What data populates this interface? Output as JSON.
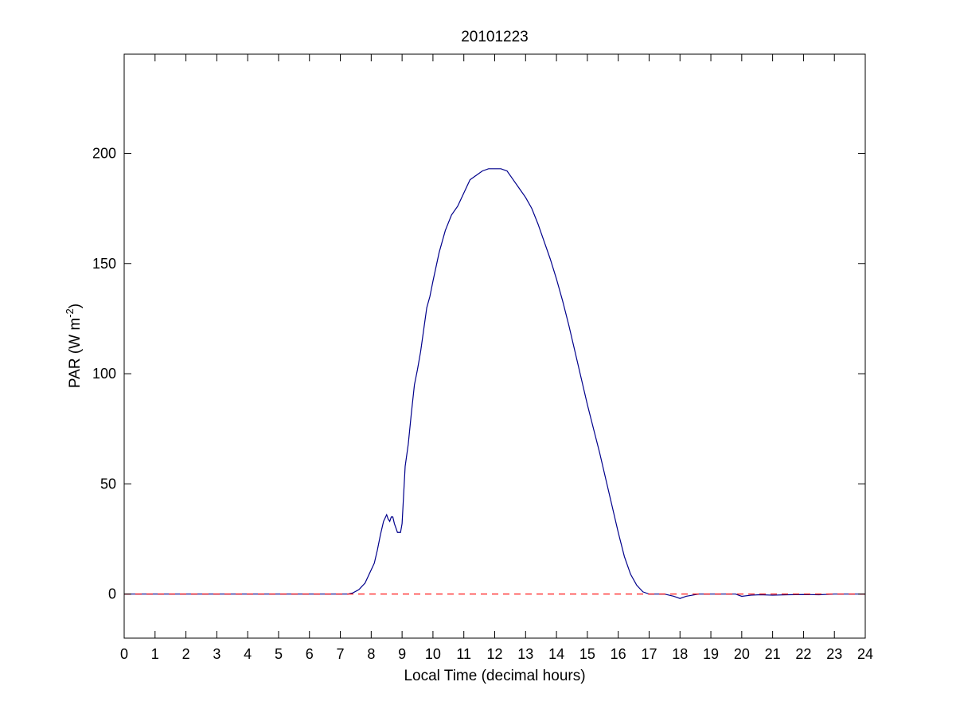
{
  "chart_data": {
    "type": "line",
    "title": "20101223",
    "xlabel": "Local Time (decimal hours)",
    "ylabel": {
      "main": "PAR (W m",
      "superscript": "-2",
      "close": ")"
    },
    "xlim": [
      0,
      24
    ],
    "ylim": [
      -20,
      245
    ],
    "x_ticks": [
      0,
      1,
      2,
      3,
      4,
      5,
      6,
      7,
      8,
      9,
      10,
      11,
      12,
      13,
      14,
      15,
      16,
      17,
      18,
      19,
      20,
      21,
      22,
      23,
      24
    ],
    "y_ticks": [
      0,
      50,
      100,
      150,
      200
    ],
    "grid": false,
    "series": [
      {
        "color": "#00008b",
        "style": "solid",
        "x": [
          0,
          7.0,
          7.25,
          7.4,
          7.6,
          7.8,
          8.0,
          8.1,
          8.2,
          8.3,
          8.4,
          8.5,
          8.55,
          8.6,
          8.65,
          8.7,
          8.75,
          8.8,
          8.85,
          8.9,
          8.95,
          9.0,
          9.05,
          9.1,
          9.2,
          9.3,
          9.4,
          9.5,
          9.6,
          9.7,
          9.8,
          9.9,
          10.0,
          10.2,
          10.4,
          10.6,
          10.8,
          11.0,
          11.2,
          11.4,
          11.6,
          11.8,
          12.0,
          12.2,
          12.4,
          12.6,
          12.8,
          13.0,
          13.2,
          13.4,
          13.6,
          13.8,
          14.0,
          14.2,
          14.4,
          14.6,
          14.8,
          15.0,
          15.2,
          15.4,
          15.6,
          15.8,
          16.0,
          16.2,
          16.4,
          16.6,
          16.8,
          17.0,
          17.2,
          17.5,
          17.8,
          18.0,
          18.2,
          18.4,
          18.6,
          19.0,
          19.5,
          19.8,
          20.0,
          20.3,
          20.6,
          21.0,
          21.5,
          22.0,
          22.5,
          23.0,
          23.1,
          24.0
        ],
        "values": [
          0,
          0,
          0,
          0.5,
          2,
          5,
          11,
          14,
          20,
          27,
          33,
          36,
          34,
          33,
          35,
          35,
          32,
          30,
          28,
          28,
          28,
          32,
          45,
          58,
          68,
          82,
          95,
          102,
          110,
          120,
          130,
          135,
          142,
          155,
          165,
          172,
          176,
          182,
          188,
          190,
          192,
          193,
          193,
          193,
          192,
          188,
          184,
          180,
          175,
          168,
          160,
          152,
          143,
          133,
          122,
          110,
          98,
          86,
          75,
          64,
          52,
          40,
          28,
          17,
          9,
          4,
          1,
          0,
          0,
          0,
          -1,
          -2,
          -1,
          -0.5,
          0,
          0,
          0,
          0,
          -1,
          -0.5,
          -0.3,
          -0.5,
          -0.3,
          -0.2,
          -0.3,
          0,
          0,
          0
        ]
      },
      {
        "color": "#ff0000",
        "style": "dashed",
        "x": [
          0,
          24
        ],
        "values": [
          0,
          0
        ]
      }
    ]
  }
}
